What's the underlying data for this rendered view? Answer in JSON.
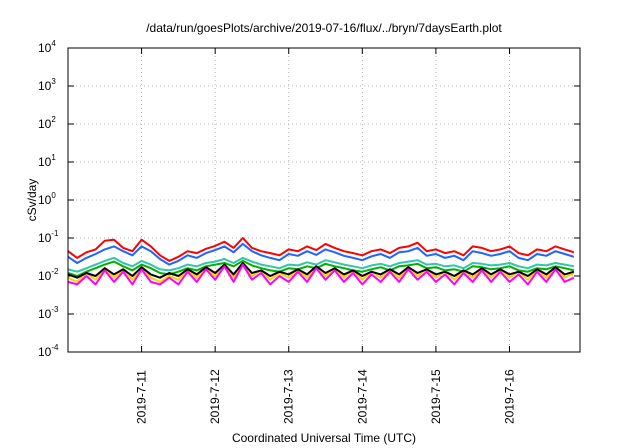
{
  "chart_data": {
    "type": "line",
    "title": "/data/run/goesPlots/archive/2019-07-16/flux/../bryn/7daysEarth.plot",
    "xlabel": "Coordinated Universal Time (UTC)",
    "ylabel": "cSv/day",
    "y_scale": "log",
    "ylim": [
      0.0001,
      10000
    ],
    "y_ticks": [
      {
        "base": "10",
        "exp": "-4",
        "value": 0.0001
      },
      {
        "base": "10",
        "exp": "-3",
        "value": 0.001
      },
      {
        "base": "10",
        "exp": "-2",
        "value": 0.01
      },
      {
        "base": "10",
        "exp": "-1",
        "value": 0.1
      },
      {
        "base": "10",
        "exp": "0",
        "value": 1
      },
      {
        "base": "10",
        "exp": "1",
        "value": 10
      },
      {
        "base": "10",
        "exp": "2",
        "value": 100
      },
      {
        "base": "10",
        "exp": "3",
        "value": 1000
      },
      {
        "base": "10",
        "exp": "4",
        "value": 10000
      }
    ],
    "xlim": [
      "2019-07-10 00:00",
      "2019-07-16 23:00"
    ],
    "x_ticks": [
      "2019-7-11",
      "2019-7-12",
      "2019-7-13",
      "2019-7-14",
      "2019-7-15",
      "2019-7-16"
    ],
    "grid": true,
    "x": [
      "2019-07-10 00:00",
      "2019-07-10 03:00",
      "2019-07-10 06:00",
      "2019-07-10 09:00",
      "2019-07-10 12:00",
      "2019-07-10 15:00",
      "2019-07-10 18:00",
      "2019-07-10 21:00",
      "2019-07-11 00:00",
      "2019-07-11 03:00",
      "2019-07-11 06:00",
      "2019-07-11 09:00",
      "2019-07-11 12:00",
      "2019-07-11 15:00",
      "2019-07-11 18:00",
      "2019-07-11 21:00",
      "2019-07-12 00:00",
      "2019-07-12 03:00",
      "2019-07-12 06:00",
      "2019-07-12 09:00",
      "2019-07-12 12:00",
      "2019-07-12 15:00",
      "2019-07-12 18:00",
      "2019-07-12 21:00",
      "2019-07-13 00:00",
      "2019-07-13 03:00",
      "2019-07-13 06:00",
      "2019-07-13 09:00",
      "2019-07-13 12:00",
      "2019-07-13 15:00",
      "2019-07-13 18:00",
      "2019-07-13 21:00",
      "2019-07-14 00:00",
      "2019-07-14 03:00",
      "2019-07-14 06:00",
      "2019-07-14 09:00",
      "2019-07-14 12:00",
      "2019-07-14 15:00",
      "2019-07-14 18:00",
      "2019-07-14 21:00",
      "2019-07-15 00:00",
      "2019-07-15 03:00",
      "2019-07-15 06:00",
      "2019-07-15 09:00",
      "2019-07-15 12:00",
      "2019-07-15 15:00",
      "2019-07-15 18:00",
      "2019-07-15 21:00",
      "2019-07-16 00:00",
      "2019-07-16 03:00",
      "2019-07-16 06:00",
      "2019-07-16 09:00",
      "2019-07-16 12:00",
      "2019-07-16 15:00",
      "2019-07-16 18:00",
      "2019-07-16 21:00"
    ],
    "series": [
      {
        "color": "#ff0000",
        "values": [
          0.045,
          0.03,
          0.042,
          0.05,
          0.085,
          0.09,
          0.055,
          0.045,
          0.09,
          0.06,
          0.035,
          0.025,
          0.032,
          0.045,
          0.04,
          0.052,
          0.062,
          0.08,
          0.055,
          0.1,
          0.055,
          0.045,
          0.04,
          0.035,
          0.05,
          0.045,
          0.06,
          0.048,
          0.07,
          0.055,
          0.045,
          0.04,
          0.035,
          0.045,
          0.05,
          0.04,
          0.055,
          0.06,
          0.075,
          0.045,
          0.05,
          0.04,
          0.045,
          0.035,
          0.06,
          0.055,
          0.045,
          0.05,
          0.06,
          0.04,
          0.035,
          0.05,
          0.045,
          0.06,
          0.05,
          0.042
        ]
      },
      {
        "color": "#1e64ff",
        "values": [
          0.032,
          0.022,
          0.03,
          0.038,
          0.05,
          0.06,
          0.045,
          0.035,
          0.06,
          0.045,
          0.028,
          0.02,
          0.025,
          0.035,
          0.03,
          0.04,
          0.048,
          0.06,
          0.042,
          0.07,
          0.045,
          0.035,
          0.03,
          0.026,
          0.038,
          0.034,
          0.045,
          0.036,
          0.05,
          0.042,
          0.034,
          0.03,
          0.026,
          0.033,
          0.038,
          0.03,
          0.042,
          0.045,
          0.055,
          0.034,
          0.038,
          0.03,
          0.034,
          0.026,
          0.045,
          0.04,
          0.034,
          0.038,
          0.045,
          0.03,
          0.026,
          0.038,
          0.034,
          0.045,
          0.038,
          0.032
        ]
      },
      {
        "color": "#2ec8a8",
        "values": [
          0.015,
          0.013,
          0.016,
          0.02,
          0.025,
          0.03,
          0.022,
          0.018,
          0.025,
          0.02,
          0.015,
          0.014,
          0.016,
          0.02,
          0.018,
          0.022,
          0.024,
          0.028,
          0.022,
          0.03,
          0.024,
          0.02,
          0.018,
          0.016,
          0.02,
          0.019,
          0.023,
          0.02,
          0.026,
          0.023,
          0.02,
          0.018,
          0.016,
          0.019,
          0.021,
          0.018,
          0.022,
          0.024,
          0.026,
          0.02,
          0.021,
          0.018,
          0.019,
          0.016,
          0.022,
          0.021,
          0.019,
          0.02,
          0.022,
          0.018,
          0.016,
          0.02,
          0.019,
          0.022,
          0.02,
          0.018
        ]
      },
      {
        "color": "#00b000",
        "values": [
          0.012,
          0.01,
          0.013,
          0.016,
          0.02,
          0.024,
          0.018,
          0.014,
          0.02,
          0.016,
          0.012,
          0.011,
          0.013,
          0.016,
          0.014,
          0.018,
          0.02,
          0.022,
          0.018,
          0.025,
          0.019,
          0.016,
          0.014,
          0.013,
          0.016,
          0.015,
          0.018,
          0.016,
          0.021,
          0.018,
          0.016,
          0.014,
          0.013,
          0.015,
          0.017,
          0.014,
          0.018,
          0.019,
          0.021,
          0.016,
          0.017,
          0.014,
          0.015,
          0.013,
          0.018,
          0.017,
          0.015,
          0.016,
          0.018,
          0.014,
          0.013,
          0.016,
          0.015,
          0.018,
          0.016,
          0.014
        ]
      },
      {
        "color": "#ffd000",
        "values": [
          0.009,
          0.007,
          0.012,
          0.008,
          0.016,
          0.009,
          0.015,
          0.008,
          0.017,
          0.009,
          0.007,
          0.01,
          0.008,
          0.015,
          0.009,
          0.017,
          0.01,
          0.02,
          0.009,
          0.022,
          0.01,
          0.014,
          0.008,
          0.012,
          0.009,
          0.015,
          0.009,
          0.018,
          0.01,
          0.016,
          0.009,
          0.014,
          0.008,
          0.013,
          0.009,
          0.015,
          0.009,
          0.017,
          0.01,
          0.015,
          0.009,
          0.013,
          0.008,
          0.014,
          0.009,
          0.016,
          0.009,
          0.015,
          0.009,
          0.013,
          0.008,
          0.015,
          0.009,
          0.017,
          0.009,
          0.012
        ]
      },
      {
        "color": "#000000",
        "values": [
          0.011,
          0.009,
          0.012,
          0.01,
          0.016,
          0.011,
          0.015,
          0.01,
          0.017,
          0.011,
          0.009,
          0.012,
          0.01,
          0.015,
          0.011,
          0.017,
          0.012,
          0.02,
          0.011,
          0.022,
          0.012,
          0.014,
          0.01,
          0.013,
          0.011,
          0.015,
          0.011,
          0.018,
          0.012,
          0.016,
          0.011,
          0.014,
          0.01,
          0.013,
          0.011,
          0.015,
          0.011,
          0.017,
          0.012,
          0.015,
          0.011,
          0.013,
          0.01,
          0.014,
          0.011,
          0.016,
          0.011,
          0.015,
          0.011,
          0.013,
          0.01,
          0.015,
          0.011,
          0.017,
          0.011,
          0.013
        ]
      },
      {
        "color": "#ff00ff",
        "values": [
          0.007,
          0.006,
          0.01,
          0.006,
          0.014,
          0.007,
          0.013,
          0.006,
          0.015,
          0.007,
          0.006,
          0.009,
          0.006,
          0.013,
          0.007,
          0.015,
          0.008,
          0.018,
          0.007,
          0.02,
          0.008,
          0.012,
          0.006,
          0.01,
          0.007,
          0.013,
          0.007,
          0.016,
          0.008,
          0.014,
          0.007,
          0.012,
          0.006,
          0.011,
          0.007,
          0.013,
          0.007,
          0.015,
          0.008,
          0.013,
          0.007,
          0.011,
          0.006,
          0.012,
          0.007,
          0.014,
          0.007,
          0.013,
          0.007,
          0.011,
          0.006,
          0.013,
          0.007,
          0.015,
          0.007,
          0.009
        ]
      }
    ]
  }
}
